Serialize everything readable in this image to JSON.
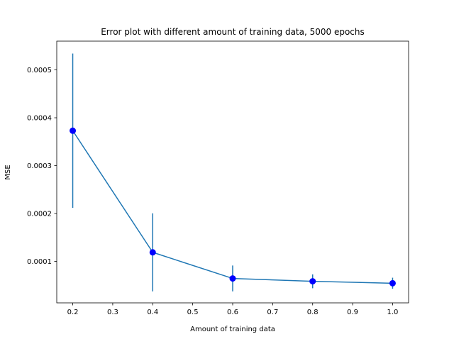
{
  "chart_data": {
    "type": "line",
    "title": "Error plot with different amount of training data, 5000 epochs",
    "xlabel": "Amount of training data",
    "ylabel": "MSE",
    "xlim": [
      0.16,
      1.04
    ],
    "ylim": [
      1.35e-05,
      0.00056
    ],
    "x_ticks": [
      0.2,
      0.3,
      0.4,
      0.5,
      0.6,
      0.7,
      0.8,
      0.9,
      1.0
    ],
    "x_tick_labels": [
      "0.2",
      "0.3",
      "0.4",
      "0.5",
      "0.6",
      "0.7",
      "0.8",
      "0.9",
      "1.0"
    ],
    "y_ticks": [
      0.0001,
      0.0002,
      0.0003,
      0.0004,
      0.0005
    ],
    "y_tick_labels": [
      "0.0001",
      "0.0002",
      "0.0003",
      "0.0004",
      "0.0005"
    ],
    "grid": false,
    "series": [
      {
        "x": [
          0.2,
          0.4,
          0.6,
          0.8,
          1.0
        ],
        "y": [
          0.000373,
          0.000119,
          6.45e-05,
          5.85e-05,
          5.45e-05
        ],
        "yerr": [
          0.000161,
          8.15e-05,
          2.7e-05,
          1.45e-05,
          1.15e-05
        ],
        "line_color": "#1f77b4",
        "marker_color": "#0000ff"
      }
    ]
  }
}
